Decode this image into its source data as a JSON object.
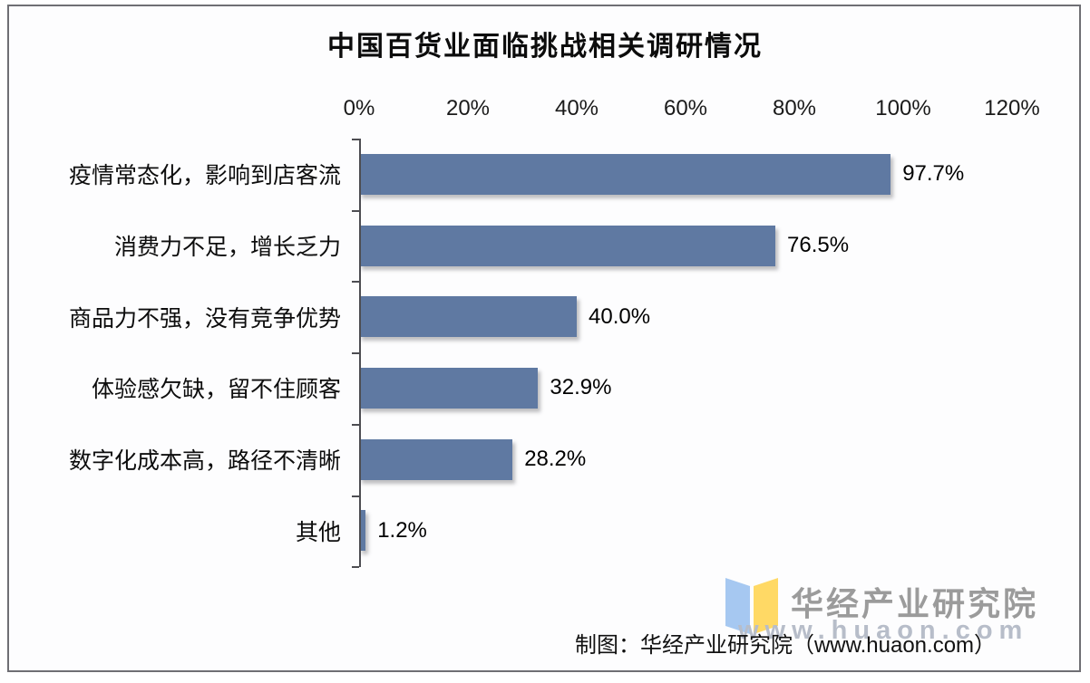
{
  "title": "中国百货业面临挑战相关调研情况",
  "chart_data": {
    "type": "bar",
    "orientation": "horizontal",
    "title": "中国百货业面临挑战相关调研情况",
    "categories": [
      "疫情常态化，影响到店客流",
      "消费力不足，增长乏力",
      "商品力不强，没有竞争优势",
      "体验感欠缺，留不住顾客",
      "数字化成本高，路径不清晰",
      "其他"
    ],
    "values": [
      97.7,
      76.5,
      40.0,
      32.9,
      28.2,
      1.2
    ],
    "value_labels": [
      "97.7%",
      "76.5%",
      "40.0%",
      "32.9%",
      "28.2%",
      "1.2%"
    ],
    "x_ticks": [
      "0%",
      "20%",
      "40%",
      "60%",
      "80%",
      "100%",
      "120%"
    ],
    "xlim": [
      0,
      120
    ],
    "xlabel": "",
    "ylabel": "",
    "grid": "off",
    "legend": "none",
    "bar_color": "#5f79a2"
  },
  "watermark": {
    "publisher": "华经产业研究院",
    "website": "www.huaon.com",
    "icon": "open-book-icon",
    "icon_colors": {
      "left_page": "#a6c8f1",
      "right_page": "#ffd965"
    }
  },
  "footer": {
    "attribution": "制图：华经产业研究院（www.huaon.com）"
  },
  "colors": {
    "background": "#fdfdfe",
    "frame_border": "#6f6f74",
    "axis": "#4d4d52",
    "text": "#0d0d0d",
    "logo_text": "#9b9b9b",
    "logo_url": "#b7bdc9"
  }
}
